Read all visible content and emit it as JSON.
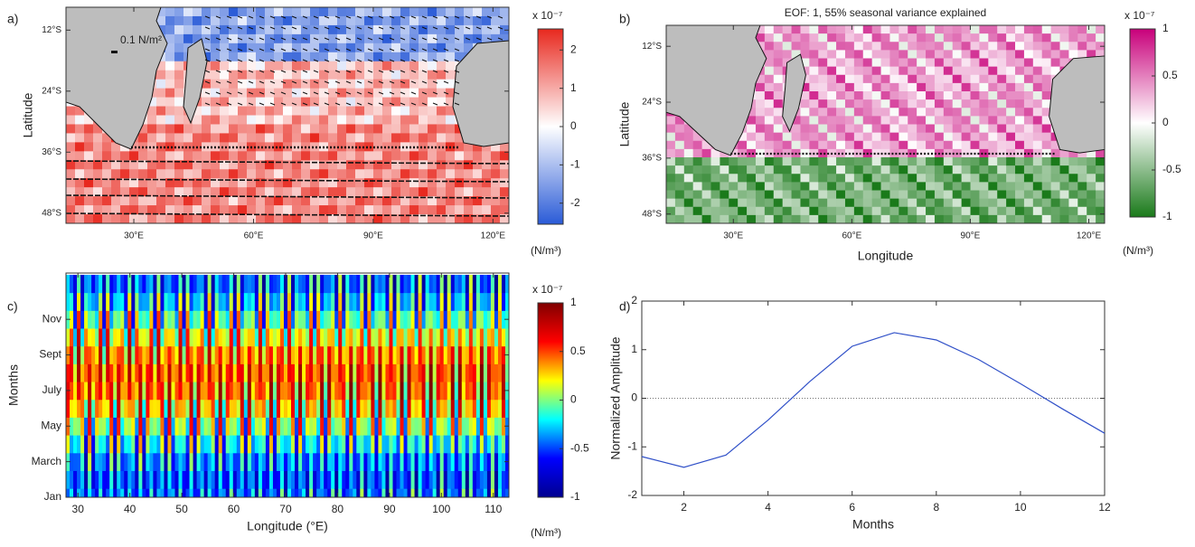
{
  "chart_data": [
    {
      "type": "map",
      "panel_label": "a)",
      "ylabel": "Latitude",
      "annotation": "0.1 N/m²",
      "xlim": [
        13,
        124
      ],
      "ylim": [
        -50,
        -7.5
      ],
      "xticks": [
        {
          "value": 30,
          "label": "30°E"
        },
        {
          "value": 60,
          "label": "60°E"
        },
        {
          "value": 90,
          "label": "90°E"
        },
        {
          "value": 120,
          "label": "120°E"
        }
      ],
      "yticks": [
        {
          "value": -12,
          "label": "12°S"
        },
        {
          "value": -24,
          "label": "24°S"
        },
        {
          "value": -36,
          "label": "36°S"
        },
        {
          "value": -48,
          "label": "48°S"
        }
      ],
      "colorbar": {
        "clim": [
          -2.55,
          2.55
        ],
        "ticks": [
          2,
          1,
          0,
          -1,
          -2
        ],
        "multiplier": "x 10⁻⁷",
        "unit": "(N/m³)",
        "colors": [
          "#2a5bd7",
          "#ffffff",
          "#e8281e"
        ]
      }
    },
    {
      "type": "map",
      "panel_label": "b)",
      "title": "EOF: 1, 55% seasonal variance explained",
      "xlabel": "Longitude",
      "ylabel": "Latitude",
      "xlim": [
        13,
        124
      ],
      "ylim": [
        -50,
        -7.5
      ],
      "xticks": [
        {
          "value": 30,
          "label": "30°E"
        },
        {
          "value": 60,
          "label": "60°E"
        },
        {
          "value": 90,
          "label": "90°E"
        },
        {
          "value": 120,
          "label": "120°E"
        }
      ],
      "yticks": [
        {
          "value": -12,
          "label": "12°S"
        },
        {
          "value": -24,
          "label": "24°S"
        },
        {
          "value": -36,
          "label": "36°S"
        },
        {
          "value": -48,
          "label": "48°S"
        }
      ],
      "colorbar": {
        "clim": [
          -1,
          1
        ],
        "ticks": [
          1,
          0.5,
          0,
          -0.5,
          -1
        ],
        "multiplier": "x 10⁻⁷",
        "unit": "(N/m³)",
        "colors": [
          "#1a7a1a",
          "#ffffff",
          "#c8007a"
        ]
      }
    },
    {
      "type": "heatmap",
      "panel_label": "c)",
      "xlabel": "Longitude (°E)",
      "ylabel": "Months",
      "xlim": [
        27.7,
        113
      ],
      "ylim": [
        1,
        13.6
      ],
      "xticks": [
        30,
        40,
        50,
        60,
        70,
        80,
        90,
        100,
        110
      ],
      "yticks": [
        {
          "value": 1,
          "label": "Jan"
        },
        {
          "value": 3,
          "label": "March"
        },
        {
          "value": 5,
          "label": "May"
        },
        {
          "value": 7,
          "label": "July"
        },
        {
          "value": 9,
          "label": "Sept"
        },
        {
          "value": 11,
          "label": "Nov"
        }
      ],
      "colorbar": {
        "clim": [
          -1,
          1
        ],
        "ticks": [
          1,
          0.5,
          0,
          -0.5,
          -1
        ],
        "multiplier": "x 10⁻⁷",
        "unit": "(N/m³)",
        "colors": [
          "#00008f",
          "#0000ff",
          "#00ffff",
          "#ffff00",
          "#ff0000",
          "#800000"
        ]
      }
    },
    {
      "type": "line",
      "panel_label": "d)",
      "xlabel": "Months",
      "ylabel": "Normalized Amplitude",
      "x": [
        1,
        2,
        3,
        4,
        5,
        6,
        7,
        8,
        9,
        10,
        11,
        12
      ],
      "values": [
        -1.2,
        -1.42,
        -1.17,
        -0.45,
        0.35,
        1.07,
        1.35,
        1.2,
        0.8,
        0.3,
        -0.22,
        -0.72
      ],
      "color": "#3050c8",
      "zero_line": true,
      "xlim": [
        1,
        12
      ],
      "ylim": [
        -2,
        2
      ],
      "xticks": [
        2,
        4,
        6,
        8,
        10,
        12
      ],
      "yticks": [
        -2,
        -1,
        0,
        1,
        2
      ]
    }
  ]
}
